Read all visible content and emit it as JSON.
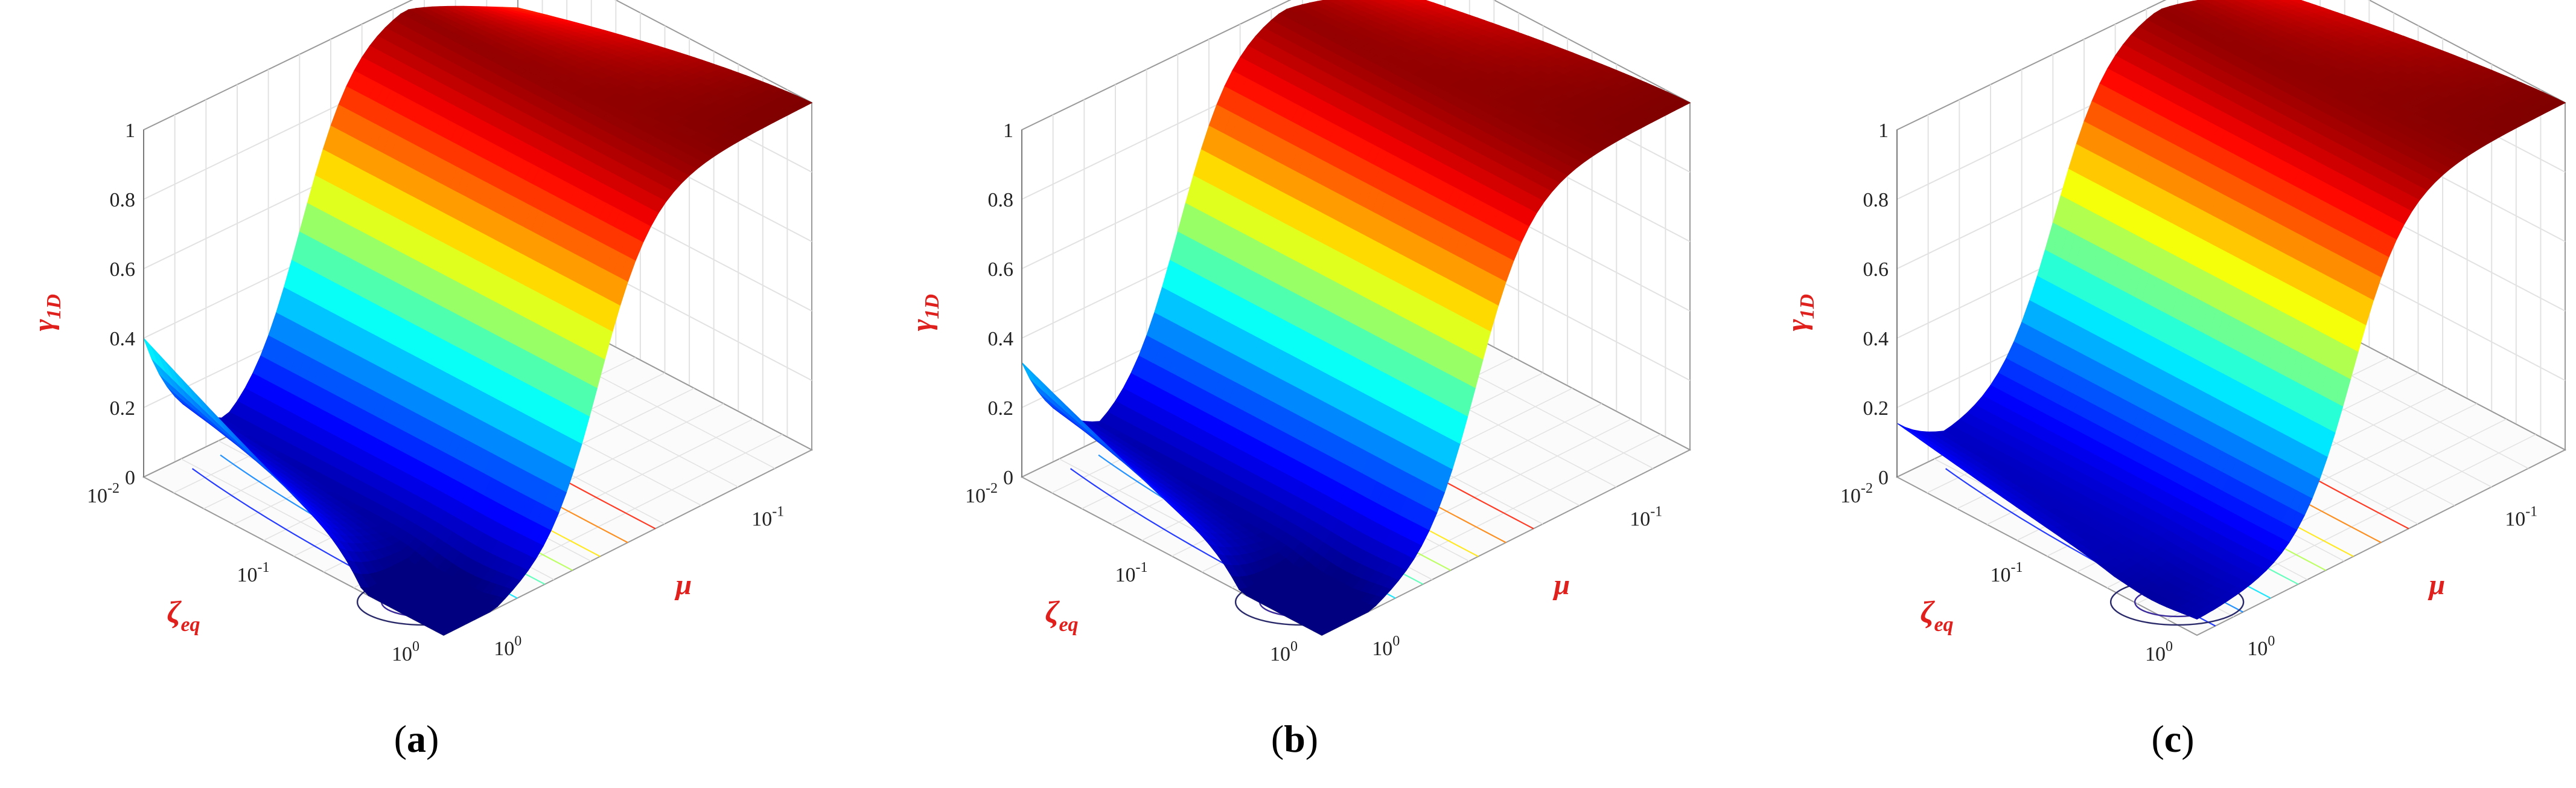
{
  "panels": [
    {
      "id": "a",
      "caption_letter": "a",
      "surface_min": 0.0,
      "edge_start": 0.4,
      "ridge_max": 1.0,
      "far_edge": 0.83,
      "tail_depth": 0.16
    },
    {
      "id": "b",
      "caption_letter": "b",
      "surface_min": 0.0,
      "edge_start": 0.33,
      "ridge_max": 1.0,
      "far_edge": 0.88,
      "tail_depth": 0.14
    },
    {
      "id": "c",
      "caption_letter": "c",
      "surface_min": 0.05,
      "edge_start": 0.13,
      "ridge_max": 1.0,
      "far_edge": 0.88,
      "tail_depth": 0.02
    }
  ],
  "axes": {
    "z_label_main": "γ",
    "z_label_sub": "1D",
    "z_ticks": [
      "0",
      "0.2",
      "0.4",
      "0.6",
      "0.8",
      "1"
    ],
    "zeta_label_main": "ζ",
    "zeta_label_sub": "eq",
    "zeta_ticks": [
      {
        "base": "10",
        "exp": "-2"
      },
      {
        "base": "10",
        "exp": "-1"
      },
      {
        "base": "10",
        "exp": "0"
      }
    ],
    "mu_label": "μ",
    "mu_ticks": [
      {
        "base": "10",
        "exp": "0"
      },
      {
        "base": "10",
        "exp": "-1"
      }
    ]
  },
  "chart_data": [
    {
      "type": "surface",
      "panel": "a",
      "zlabel": "γ1D",
      "xlabel": "ζeq",
      "ylabel": "μ",
      "zlim": [
        0,
        1
      ],
      "zeta_range": [
        0.01,
        1
      ],
      "mu_range": [
        0.05,
        1
      ],
      "zeta_scale": "log",
      "mu_scale": "log",
      "grid": true,
      "colormap": "jet",
      "contours_on_floor": true,
      "corner_values": {
        "zeta_0.01_mu_1": 0.4,
        "zeta_1_mu_1": 0.0,
        "zeta_1_mu_0.05": 1.0,
        "zeta_0.01_mu_0.05": 0.83
      }
    },
    {
      "type": "surface",
      "panel": "b",
      "zlabel": "γ1D",
      "xlabel": "ζeq",
      "ylabel": "μ",
      "zlim": [
        0,
        1
      ],
      "zeta_range": [
        0.01,
        1
      ],
      "mu_range": [
        0.05,
        1
      ],
      "zeta_scale": "log",
      "mu_scale": "log",
      "grid": true,
      "colormap": "jet",
      "contours_on_floor": true,
      "corner_values": {
        "zeta_0.01_mu_1": 0.33,
        "zeta_1_mu_1": 0.0,
        "zeta_1_mu_0.05": 1.0,
        "zeta_0.01_mu_0.05": 0.88
      }
    },
    {
      "type": "surface",
      "panel": "c",
      "zlabel": "γ1D",
      "xlabel": "ζeq",
      "ylabel": "μ",
      "zlim": [
        0,
        1
      ],
      "zeta_range": [
        0.01,
        1
      ],
      "mu_range": [
        0.05,
        1
      ],
      "zeta_scale": "log",
      "mu_scale": "log",
      "grid": true,
      "colormap": "jet",
      "contours_on_floor": true,
      "corner_values": {
        "zeta_0.01_mu_1": 0.13,
        "zeta_1_mu_1": 0.05,
        "zeta_1_mu_0.05": 1.0,
        "zeta_0.01_mu_0.05": 0.88
      }
    }
  ]
}
